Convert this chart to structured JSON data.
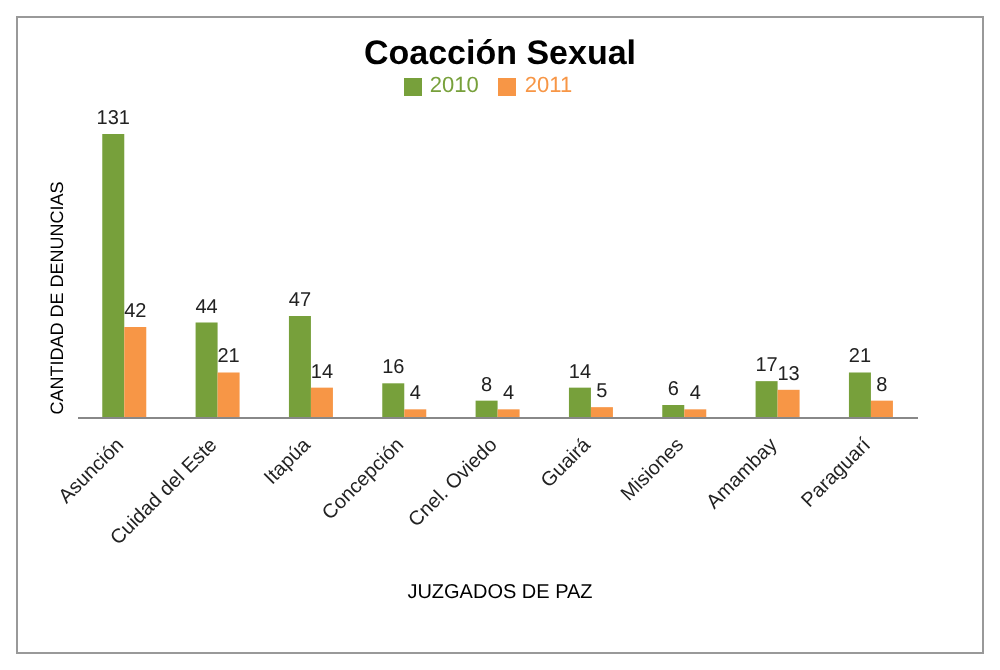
{
  "chart_data": {
    "type": "bar",
    "title": "Coacción Sexual",
    "xlabel": "JUZGADOS DE PAZ",
    "ylabel": "CANTIDAD DE DENUNCIAS",
    "categories": [
      "Asunción",
      "Cuidad del Este",
      "Itapúa",
      "Concepción",
      "Cnel. Oviedo",
      "Guairá",
      "Misiones",
      "Amambay",
      "Paraguarí"
    ],
    "series": [
      {
        "name": "2010",
        "color": "#77a03b",
        "values": [
          131,
          44,
          47,
          16,
          8,
          14,
          6,
          17,
          21
        ]
      },
      {
        "name": "2011",
        "color": "#f79646",
        "values": [
          42,
          21,
          14,
          4,
          4,
          5,
          4,
          13,
          8
        ]
      }
    ],
    "data_labels": true,
    "legend": "top",
    "grid": false
  }
}
